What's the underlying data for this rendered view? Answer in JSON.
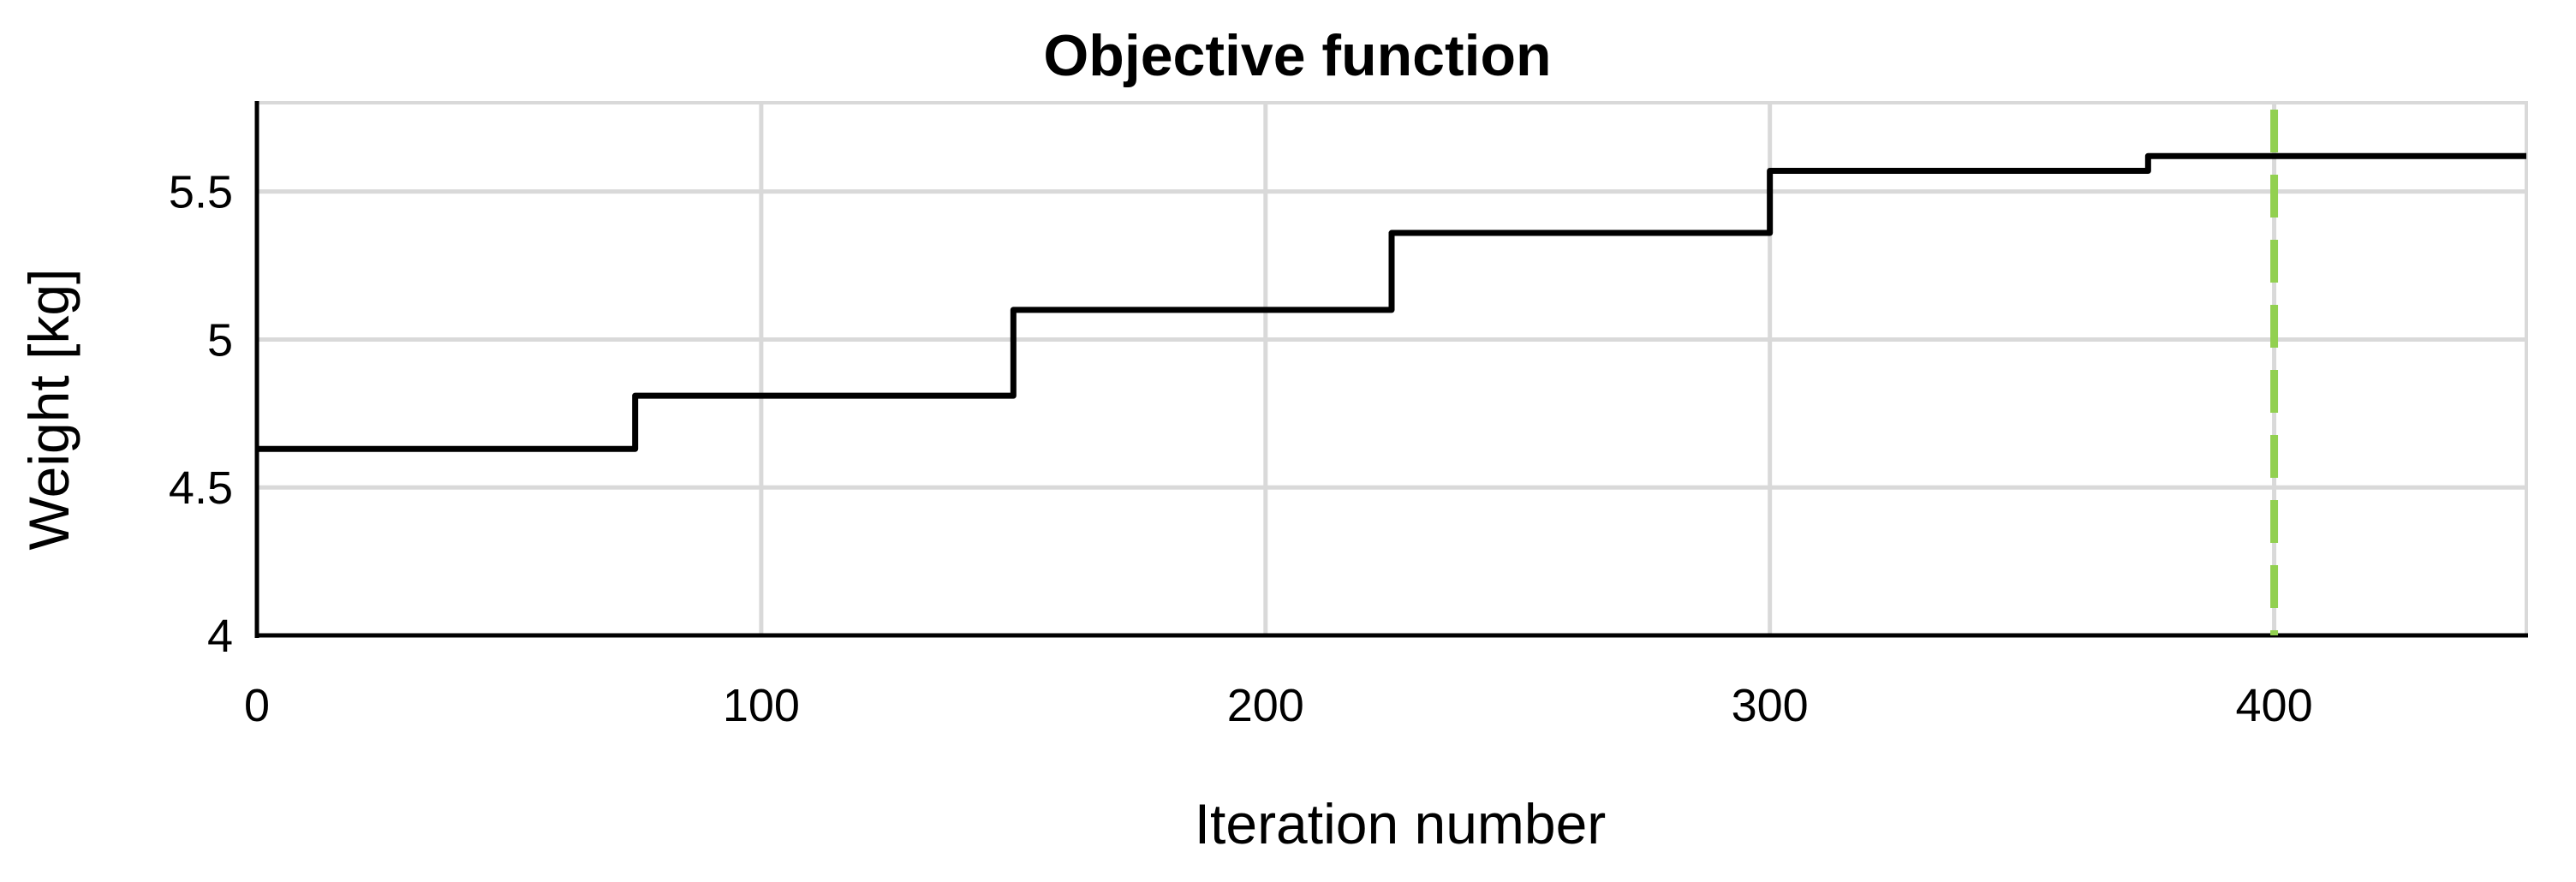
{
  "chart_data": {
    "type": "line",
    "title": "Objective function",
    "xlabel": "Iteration number",
    "ylabel": "Weight [kg]",
    "xlim": [
      0,
      450
    ],
    "ylim": [
      4,
      5.8
    ],
    "xticks": [
      0,
      100,
      200,
      300,
      400
    ],
    "yticks": [
      4,
      4.5,
      5,
      5.5
    ],
    "ytick_labels": [
      "4",
      "4.5",
      "5",
      "5.5"
    ],
    "grid": true,
    "legend": "none",
    "series": [
      {
        "color": "#000000",
        "x": [
          0,
          75,
          75,
          150,
          150,
          225,
          225,
          300,
          300,
          375,
          375,
          450
        ],
        "y": [
          4.63,
          4.63,
          4.81,
          4.81,
          5.1,
          5.1,
          5.36,
          5.36,
          5.57,
          5.57,
          5.62,
          5.62
        ]
      }
    ],
    "vline": {
      "x": 400,
      "color": "#92d050",
      "style": "dashed"
    }
  }
}
